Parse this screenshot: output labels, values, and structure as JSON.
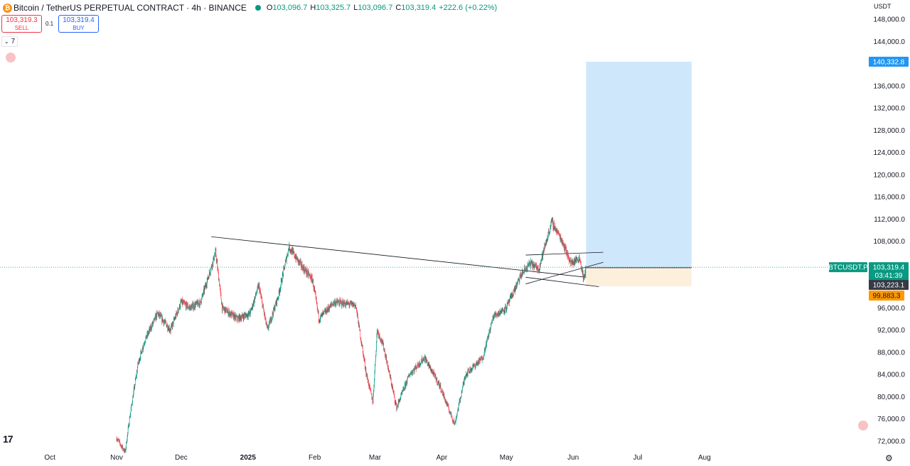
{
  "header": {
    "logo_glyph": "₿",
    "title": "Bitcoin / TetherUS PERPETUAL CONTRACT · 4h · BINANCE",
    "status_color": "#089981",
    "ohlc": {
      "o_label": "O",
      "o_value": "103,096.7",
      "h_label": "H",
      "h_value": "103,325.7",
      "l_label": "L",
      "l_value": "103,096.7",
      "c_label": "C",
      "c_value": "103,319.4",
      "change": "+222.6 (+0.22%)"
    }
  },
  "trade_panel": {
    "sell_price": "103,319.3",
    "sell_label": "SELL",
    "quantity": "0.1",
    "buy_price": "103,319.4",
    "buy_label": "BUY"
  },
  "indicators_toggle": {
    "count": "7"
  },
  "currency_label": "USDT",
  "logo_text": "17",
  "chart_data": {
    "type": "candlestick",
    "symbol_tag": "BTCUSDT.P",
    "y_ticks": [
      "148,000.0",
      "144,000.0",
      "136,000.0",
      "132,000.0",
      "128,000.0",
      "124,000.0",
      "120,000.0",
      "116,000.0",
      "112,000.0",
      "108,000.0",
      "96,000.0",
      "92,000.0",
      "88,000.0",
      "84,000.0",
      "80,000.0",
      "76,000.0",
      "72,000.0"
    ],
    "x_ticks": [
      "Oct",
      "Nov",
      "Dec",
      "2025",
      "Feb",
      "Mar",
      "Apr",
      "May",
      "Jun",
      "Jul",
      "Aug"
    ],
    "price_labels": {
      "current_price": "103,319.4",
      "countdown": "03:41:39",
      "entry": "103,223.1",
      "stop": "99,883.3",
      "target": "140,332.8"
    },
    "ohlc_series_anchor_closes": [
      [
        "2024-11-01",
        72500
      ],
      [
        "2024-11-05",
        70000
      ],
      [
        "2024-11-07",
        76000
      ],
      [
        "2024-11-11",
        86000
      ],
      [
        "2024-11-14",
        90000
      ],
      [
        "2024-11-20",
        95000
      ],
      [
        "2024-11-26",
        92000
      ],
      [
        "2024-12-01",
        97000
      ],
      [
        "2024-12-05",
        96000
      ],
      [
        "2024-12-10",
        97000
      ],
      [
        "2024-12-17",
        106000
      ],
      [
        "2024-12-20",
        96000
      ],
      [
        "2024-12-27",
        94000
      ],
      [
        "2025-01-02",
        95000
      ],
      [
        "2025-01-06",
        100000
      ],
      [
        "2025-01-10",
        92000
      ],
      [
        "2025-01-15",
        98000
      ],
      [
        "2025-01-20",
        107000
      ],
      [
        "2025-01-25",
        104000
      ],
      [
        "2025-01-31",
        101000
      ],
      [
        "2025-02-03",
        94000
      ],
      [
        "2025-02-10",
        97000
      ],
      [
        "2025-02-20",
        96500
      ],
      [
        "2025-02-25",
        84000
      ],
      [
        "2025-02-28",
        79000
      ],
      [
        "2025-03-02",
        92000
      ],
      [
        "2025-03-05",
        89000
      ],
      [
        "2025-03-11",
        78000
      ],
      [
        "2025-03-17",
        84000
      ],
      [
        "2025-03-24",
        87000
      ],
      [
        "2025-03-31",
        82000
      ],
      [
        "2025-04-07",
        75000
      ],
      [
        "2025-04-12",
        84000
      ],
      [
        "2025-04-20",
        87000
      ],
      [
        "2025-04-25",
        94500
      ],
      [
        "2025-05-01",
        96000
      ],
      [
        "2025-05-08",
        102000
      ],
      [
        "2025-05-12",
        104000
      ],
      [
        "2025-05-16",
        103000
      ],
      [
        "2025-05-21",
        110000
      ],
      [
        "2025-05-22",
        111500
      ],
      [
        "2025-05-27",
        108000
      ],
      [
        "2025-05-31",
        104000
      ],
      [
        "2025-06-04",
        105000
      ],
      [
        "2025-06-06",
        101000
      ],
      [
        "2025-06-07",
        103300
      ]
    ],
    "trendlines": [
      {
        "from": [
          "2024-12-15",
          108800
        ],
        "to": [
          "2025-06-07",
          101500
        ]
      },
      {
        "from": [
          "2025-05-10",
          105500
        ],
        "to": [
          "2025-06-15",
          106000
        ]
      },
      {
        "from": [
          "2025-05-10",
          100300
        ],
        "to": [
          "2025-06-15",
          104200
        ]
      },
      {
        "from": [
          "2025-05-10",
          101500
        ],
        "to": [
          "2025-06-13",
          99800
        ]
      }
    ],
    "position": {
      "start": "2025-06-07",
      "end": "2025-07-26",
      "entry": 103223.1,
      "stop": 99883.3,
      "target": 140332.8
    },
    "colors": {
      "up": "#089981",
      "down": "#f23645",
      "profit_zone": "#cfe7fb",
      "loss_zone": "#fcefdc",
      "current_price": "#089981",
      "target": "#2196f3",
      "stop": "#ff9800",
      "entry": "#363a45"
    }
  }
}
